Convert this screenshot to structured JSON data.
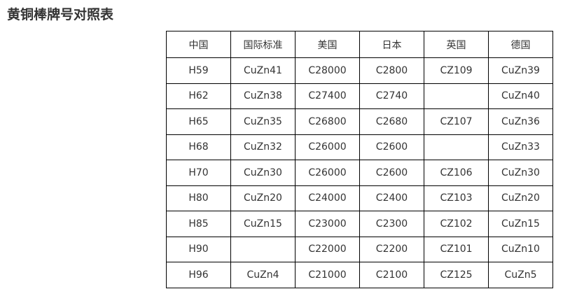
{
  "title": "黄铜棒牌号对照表",
  "table": {
    "headers": [
      "中国",
      "国际标准",
      "美国",
      "日本",
      "英国",
      "德国"
    ],
    "rows": [
      [
        "H59",
        "CuZn41",
        "C28000",
        "C2800",
        "CZ109",
        "CuZn39"
      ],
      [
        "H62",
        "CuZn38",
        "C27400",
        "C2740",
        "",
        "CuZn40"
      ],
      [
        "H65",
        "CuZn35",
        "C26800",
        "C2680",
        "CZ107",
        "CuZn36"
      ],
      [
        "H68",
        "CuZn32",
        "C26000",
        "C2600",
        "",
        "CuZn33"
      ],
      [
        "H70",
        "CuZn30",
        "C26000",
        "C2600",
        "CZ106",
        "CuZn30"
      ],
      [
        "H80",
        "CuZn20",
        "C24000",
        "C2400",
        "CZ103",
        "CuZn20"
      ],
      [
        "H85",
        "CuZn15",
        "C23000",
        "C2300",
        "CZ102",
        "CuZn15"
      ],
      [
        "H90",
        "",
        "C22000",
        "C2200",
        "CZ101",
        "CuZn10"
      ],
      [
        "H96",
        "CuZn4",
        "C21000",
        "C2100",
        "CZ125",
        "CuZn5"
      ]
    ]
  }
}
